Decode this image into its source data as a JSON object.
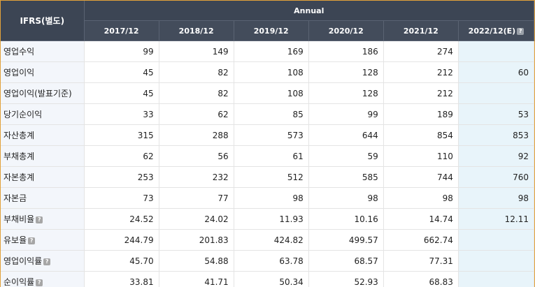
{
  "table": {
    "corner_label": "IFRS(별도)",
    "group_label": "Annual",
    "years": [
      "2017/12",
      "2018/12",
      "2019/12",
      "2020/12",
      "2021/12",
      "2022/12(E)"
    ],
    "help_glyph": "?",
    "rows": [
      {
        "label": "영업수익",
        "help": false,
        "values": [
          "99",
          "149",
          "169",
          "186",
          "274",
          ""
        ]
      },
      {
        "label": "영업이익",
        "help": false,
        "values": [
          "45",
          "82",
          "108",
          "128",
          "212",
          "60"
        ]
      },
      {
        "label": "영업이익(발표기준)",
        "help": false,
        "values": [
          "45",
          "82",
          "108",
          "128",
          "212",
          ""
        ]
      },
      {
        "label": "당기순이익",
        "help": false,
        "values": [
          "33",
          "62",
          "85",
          "99",
          "189",
          "53"
        ]
      },
      {
        "label": "자산총계",
        "help": false,
        "values": [
          "315",
          "288",
          "573",
          "644",
          "854",
          "853"
        ]
      },
      {
        "label": "부채총계",
        "help": false,
        "values": [
          "62",
          "56",
          "61",
          "59",
          "110",
          "92"
        ]
      },
      {
        "label": "자본총계",
        "help": false,
        "values": [
          "253",
          "232",
          "512",
          "585",
          "744",
          "760"
        ]
      },
      {
        "label": "자본금",
        "help": false,
        "values": [
          "73",
          "77",
          "98",
          "98",
          "98",
          "98"
        ]
      },
      {
        "label": "부채비율",
        "help": true,
        "values": [
          "24.52",
          "24.02",
          "11.93",
          "10.16",
          "14.74",
          "12.11"
        ]
      },
      {
        "label": "유보율",
        "help": true,
        "values": [
          "244.79",
          "201.83",
          "424.82",
          "499.57",
          "662.74",
          ""
        ]
      },
      {
        "label": "영업이익률",
        "help": true,
        "values": [
          "45.70",
          "54.88",
          "63.78",
          "68.57",
          "77.31",
          ""
        ]
      },
      {
        "label": "순이익률",
        "help": true,
        "values": [
          "33.81",
          "41.71",
          "50.34",
          "52.93",
          "68.83",
          ""
        ]
      }
    ]
  }
}
